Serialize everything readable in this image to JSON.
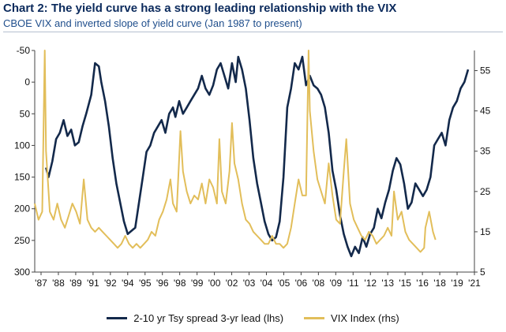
{
  "header": {
    "title": "Chart 2: The yield curve has a strong leading relationship with the VIX",
    "subtitle": "CBOE VIX and inverted slope of yield curve (Jan 1987 to present)"
  },
  "colors": {
    "spread": "#13294b",
    "vix": "#e2be5a",
    "axis": "#444444"
  },
  "chart_data": {
    "type": "line",
    "title": "Chart 2: The yield curve has a strong leading relationship with the VIX",
    "subtitle": "CBOE VIX and inverted slope of yield curve (Jan 1987 to present)",
    "xlabel": "",
    "y_left": {
      "lim": [
        300,
        -50
      ],
      "inverted": true,
      "ticks": [
        -50,
        0,
        50,
        100,
        150,
        200,
        250,
        300
      ]
    },
    "y_right": {
      "lim": [
        5,
        60
      ],
      "ticks": [
        5,
        15,
        25,
        35,
        45,
        55
      ]
    },
    "x_ticks": [
      "'87",
      "'88",
      "'89",
      "'91",
      "'92",
      "'94",
      "'95",
      "'96",
      "'98",
      "'99",
      "'00",
      "'02",
      "'03",
      "'04",
      "'05",
      "'06",
      "'08",
      "'09",
      "'11",
      "'12",
      "'13",
      "'15",
      "'16",
      "'18",
      "'19",
      "'21"
    ],
    "x_range": [
      1987.0,
      2022.0
    ],
    "grid": false,
    "legend_position": "bottom",
    "series": [
      {
        "name": "2-10 yr Tsy spread 3-yr lead (lhs)",
        "axis": "left",
        "x": [
          1987.9,
          1988.1,
          1988.4,
          1988.7,
          1989.0,
          1989.3,
          1989.6,
          1989.9,
          1990.2,
          1990.5,
          1990.8,
          1991.1,
          1991.5,
          1991.8,
          1992.1,
          1992.3,
          1992.6,
          1992.9,
          1993.2,
          1993.5,
          1993.8,
          1994.1,
          1994.4,
          1994.7,
          1995.0,
          1995.3,
          1995.6,
          1995.9,
          1996.2,
          1996.5,
          1996.8,
          1997.1,
          1997.4,
          1997.7,
          1998.0,
          1998.2,
          1998.5,
          1998.8,
          1999.1,
          1999.4,
          1999.7,
          2000.0,
          2000.3,
          2000.6,
          2000.9,
          2001.2,
          2001.5,
          2001.8,
          2002.1,
          2002.4,
          2002.7,
          2003.0,
          2003.2,
          2003.5,
          2003.8,
          2004.1,
          2004.4,
          2004.7,
          2005.0,
          2005.3,
          2005.6,
          2005.9,
          2006.2,
          2006.5,
          2006.8,
          2007.1,
          2007.4,
          2007.7,
          2008.0,
          2008.3,
          2008.6,
          2008.9,
          2009.2,
          2009.5,
          2009.8,
          2010.1,
          2010.4,
          2010.7,
          2011.0,
          2011.3,
          2011.6,
          2011.9,
          2012.2,
          2012.5,
          2012.8,
          2013.1,
          2013.4,
          2013.7,
          2014.0,
          2014.3,
          2014.6,
          2014.9,
          2015.2,
          2015.5,
          2015.8,
          2016.1,
          2016.4,
          2016.7,
          2017.0,
          2017.3,
          2017.6,
          2017.9,
          2018.2,
          2018.5,
          2018.8,
          2019.1,
          2019.4,
          2019.7,
          2020.0,
          2020.3,
          2020.6,
          2020.9,
          2021.2,
          2021.5
        ],
        "values": [
          135,
          150,
          125,
          90,
          80,
          60,
          85,
          75,
          100,
          95,
          70,
          50,
          20,
          -30,
          -25,
          0,
          30,
          70,
          120,
          160,
          190,
          220,
          240,
          235,
          230,
          190,
          150,
          110,
          100,
          80,
          70,
          60,
          80,
          50,
          40,
          55,
          30,
          50,
          40,
          30,
          20,
          10,
          -10,
          10,
          20,
          5,
          -20,
          -30,
          -10,
          10,
          -30,
          0,
          -40,
          -20,
          10,
          60,
          120,
          160,
          190,
          220,
          240,
          250,
          245,
          220,
          150,
          40,
          10,
          -30,
          -20,
          -40,
          5,
          -10,
          5,
          10,
          20,
          40,
          80,
          140,
          170,
          210,
          240,
          260,
          275,
          260,
          270,
          245,
          260,
          240,
          230,
          200,
          215,
          190,
          170,
          140,
          120,
          130,
          160,
          200,
          190,
          160,
          170,
          180,
          170,
          150,
          100,
          90,
          80,
          100,
          60,
          40,
          30,
          10,
          0,
          -20
        ]
      },
      {
        "name": "VIX Index (rhs)",
        "axis": "right",
        "x": [
          1987.0,
          1987.3,
          1987.6,
          1987.8,
          1987.9,
          1988.2,
          1988.5,
          1988.8,
          1989.1,
          1989.4,
          1989.7,
          1990.0,
          1990.3,
          1990.6,
          1990.9,
          1991.2,
          1991.5,
          1991.8,
          1992.1,
          1992.4,
          1992.7,
          1993.0,
          1993.3,
          1993.6,
          1993.9,
          1994.2,
          1994.5,
          1994.8,
          1995.1,
          1995.4,
          1995.7,
          1996.0,
          1996.3,
          1996.6,
          1996.9,
          1997.2,
          1997.5,
          1997.8,
          1998.0,
          1998.3,
          1998.6,
          1998.8,
          1999.1,
          1999.4,
          1999.7,
          2000.0,
          2000.3,
          2000.6,
          2000.9,
          2001.2,
          2001.5,
          2001.7,
          2001.9,
          2002.2,
          2002.5,
          2002.7,
          2002.9,
          2003.2,
          2003.5,
          2003.8,
          2004.1,
          2004.4,
          2004.7,
          2005.0,
          2005.3,
          2005.6,
          2005.9,
          2006.2,
          2006.5,
          2006.8,
          2007.1,
          2007.4,
          2007.7,
          2008.0,
          2008.3,
          2008.6,
          2008.8,
          2008.9,
          2009.2,
          2009.5,
          2009.8,
          2010.1,
          2010.4,
          2010.7,
          2011.0,
          2011.3,
          2011.6,
          2011.8,
          2012.1,
          2012.4,
          2012.7,
          2013.0,
          2013.3,
          2013.6,
          2013.9,
          2014.2,
          2014.5,
          2014.8,
          2015.1,
          2015.4,
          2015.6,
          2015.9,
          2016.2,
          2016.5,
          2016.8,
          2017.1,
          2017.4,
          2017.7,
          2018.0,
          2018.1,
          2018.4,
          2018.7,
          2018.9
        ],
        "values": [
          22,
          18,
          20,
          60,
          35,
          20,
          18,
          22,
          18,
          16,
          19,
          22,
          20,
          17,
          28,
          18,
          16,
          15,
          16,
          15,
          14,
          13,
          12,
          11,
          12,
          14,
          12,
          11,
          12,
          11,
          12,
          13,
          15,
          14,
          18,
          20,
          23,
          28,
          22,
          20,
          40,
          30,
          25,
          22,
          24,
          23,
          27,
          22,
          28,
          26,
          22,
          38,
          25,
          22,
          30,
          42,
          32,
          28,
          22,
          18,
          17,
          15,
          14,
          13,
          12,
          12,
          14,
          12,
          12,
          11,
          12,
          16,
          22,
          28,
          24,
          24,
          60,
          45,
          35,
          28,
          25,
          22,
          32,
          24,
          18,
          17,
          30,
          38,
          22,
          18,
          16,
          14,
          13,
          15,
          14,
          12,
          13,
          14,
          16,
          14,
          25,
          18,
          20,
          15,
          13,
          12,
          11,
          10,
          11,
          16,
          20,
          15,
          13
        ]
      }
    ]
  },
  "legend": {
    "spread_label": "2-10 yr Tsy spread 3-yr lead (lhs)",
    "vix_label": "VIX Index (rhs)"
  }
}
